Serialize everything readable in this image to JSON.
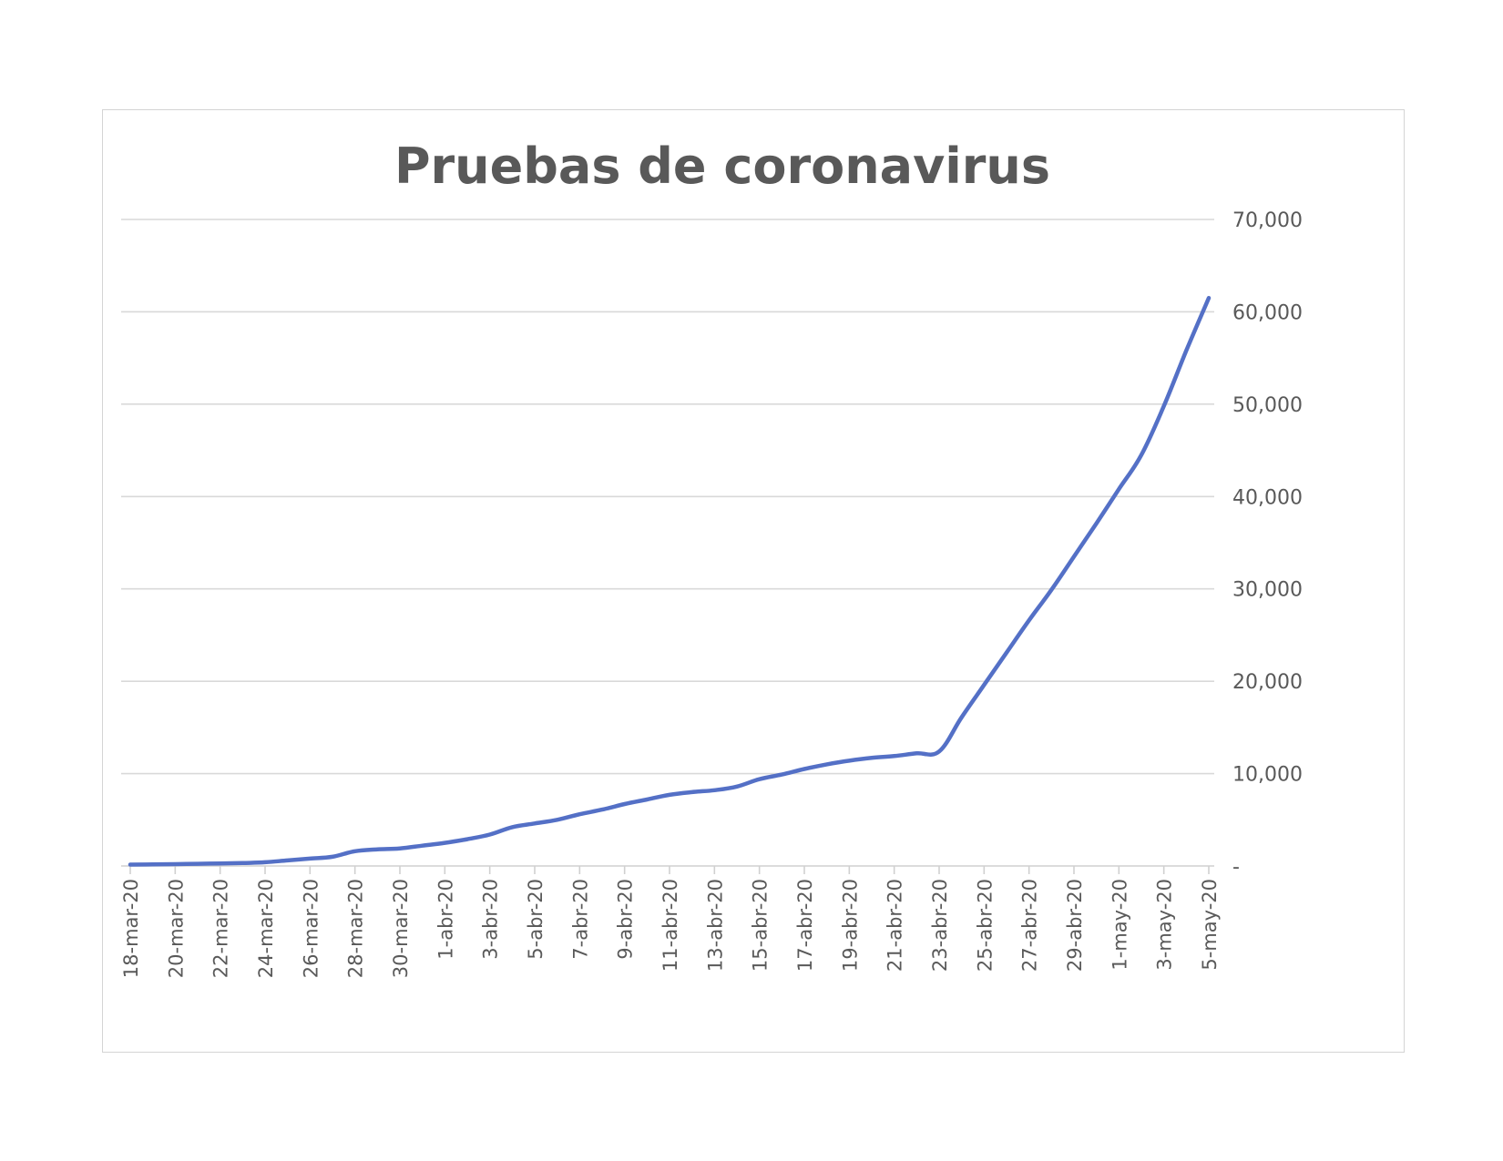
{
  "chart_data": {
    "type": "line",
    "title": "Pruebas  de coronavirus",
    "xlabel": "",
    "ylabel": "",
    "ylim": [
      0,
      70000
    ],
    "y_ticks": [
      {
        "value": 0,
        "label": "-"
      },
      {
        "value": 10000,
        "label": "10,000"
      },
      {
        "value": 20000,
        "label": "20,000"
      },
      {
        "value": 30000,
        "label": "30,000"
      },
      {
        "value": 40000,
        "label": "40,000"
      },
      {
        "value": 50000,
        "label": "50,000"
      },
      {
        "value": 60000,
        "label": "60,000"
      },
      {
        "value": 70000,
        "label": "70,000"
      }
    ],
    "y_axis_position": "right",
    "grid": true,
    "legend": "none",
    "x_tick_labels": [
      "18-mar-20",
      "20-mar-20",
      "22-mar-20",
      "24-mar-20",
      "26-mar-20",
      "28-mar-20",
      "30-mar-20",
      "1-abr-20",
      "3-abr-20",
      "5-abr-20",
      "7-abr-20",
      "9-abr-20",
      "11-abr-20",
      "13-abr-20",
      "15-abr-20",
      "17-abr-20",
      "19-abr-20",
      "21-abr-20",
      "23-abr-20",
      "25-abr-20",
      "27-abr-20",
      "29-abr-20",
      "1-may-20",
      "3-may-20",
      "5-may-20"
    ],
    "series": [
      {
        "color": "#5470c6",
        "x": [
          "18-mar-20",
          "19-mar-20",
          "20-mar-20",
          "21-mar-20",
          "22-mar-20",
          "23-mar-20",
          "24-mar-20",
          "25-mar-20",
          "26-mar-20",
          "27-mar-20",
          "28-mar-20",
          "29-mar-20",
          "30-mar-20",
          "31-mar-20",
          "1-abr-20",
          "2-abr-20",
          "3-abr-20",
          "4-abr-20",
          "5-abr-20",
          "6-abr-20",
          "7-abr-20",
          "8-abr-20",
          "9-abr-20",
          "10-abr-20",
          "11-abr-20",
          "12-abr-20",
          "13-abr-20",
          "14-abr-20",
          "15-abr-20",
          "16-abr-20",
          "17-abr-20",
          "18-abr-20",
          "19-abr-20",
          "20-abr-20",
          "21-abr-20",
          "22-abr-20",
          "23-abr-20",
          "24-abr-20",
          "25-abr-20",
          "26-abr-20",
          "27-abr-20",
          "28-abr-20",
          "29-abr-20",
          "30-abr-20",
          "1-may-20",
          "2-may-20",
          "3-may-20",
          "4-may-20",
          "5-may-20"
        ],
        "values": [
          150,
          170,
          200,
          240,
          280,
          320,
          400,
          600,
          800,
          1000,
          1600,
          1800,
          1900,
          2200,
          2500,
          2900,
          3400,
          4200,
          4600,
          5000,
          5600,
          6100,
          6700,
          7200,
          7700,
          8000,
          8200,
          8600,
          9400,
          9900,
          10500,
          11000,
          11400,
          11700,
          11900,
          12200,
          12400,
          16100,
          19600,
          23100,
          26600,
          29900,
          33500,
          37100,
          40800,
          44500,
          49800,
          55800,
          61500
        ]
      }
    ]
  }
}
